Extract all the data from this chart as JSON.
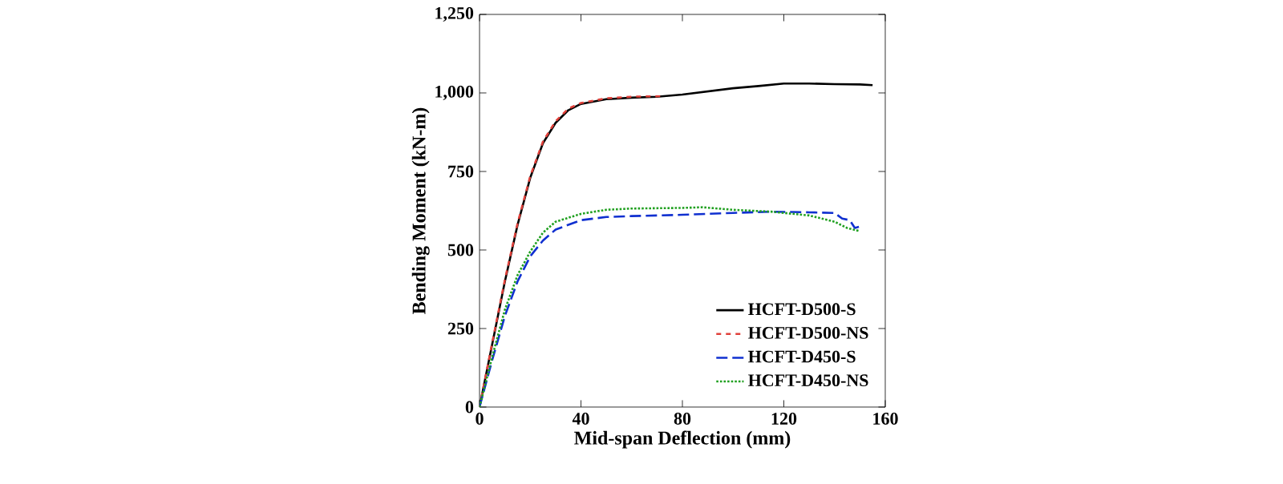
{
  "chart_data": {
    "type": "line",
    "xlabel": "Mid-span Deflection (mm)",
    "ylabel": "Bending Moment (kN-m)",
    "xlim": [
      0,
      160
    ],
    "xticks": [
      0,
      40,
      80,
      120,
      160
    ],
    "ylim": [
      0,
      1250
    ],
    "yticks": [
      0,
      {
        "value": 250,
        "label": "250"
      },
      {
        "value": 500,
        "label": "500"
      },
      {
        "value": 750,
        "label": "750"
      },
      {
        "value": 1000,
        "label": "1,000"
      },
      {
        "value": 1250,
        "label": "1,250"
      }
    ],
    "grid": false,
    "legend": "bottom right",
    "marker": "none",
    "series": [
      {
        "name": "HCFT-D500-S",
        "color": "#000000",
        "line_style": "solid",
        "x": [
          0,
          5,
          10,
          15,
          20,
          25,
          30,
          35,
          40,
          50,
          60,
          70,
          80,
          90,
          100,
          110,
          120,
          130,
          140,
          150,
          155
        ],
        "values": [
          0,
          200,
          400,
          580,
          730,
          840,
          905,
          945,
          965,
          980,
          985,
          988,
          995,
          1005,
          1015,
          1022,
          1030,
          1030,
          1028,
          1027,
          1025
        ]
      },
      {
        "name": "HCFT-D500-NS",
        "color": "#e0403a",
        "line_style": "dashed",
        "x": [
          0,
          5,
          10,
          15,
          20,
          25,
          30,
          35,
          40,
          50,
          60,
          72
        ],
        "values": [
          0,
          205,
          405,
          585,
          735,
          845,
          910,
          950,
          968,
          983,
          988,
          990
        ]
      },
      {
        "name": "HCFT-D450-S",
        "color": "#1030d0",
        "line_style": "longdash",
        "x": [
          0,
          5,
          10,
          15,
          20,
          25,
          30,
          40,
          50,
          60,
          80,
          100,
          115,
          130,
          140,
          143,
          146,
          148,
          150
        ],
        "values": [
          0,
          150,
          290,
          400,
          480,
          530,
          565,
          595,
          605,
          608,
          612,
          618,
          622,
          620,
          618,
          600,
          595,
          570,
          575
        ]
      },
      {
        "name": "HCFT-D450-NS",
        "color": "#20a020",
        "line_style": "dotted",
        "x": [
          0,
          5,
          10,
          15,
          20,
          25,
          30,
          40,
          50,
          60,
          80,
          88,
          100,
          115,
          130,
          140,
          145,
          150
        ],
        "values": [
          0,
          160,
          310,
          420,
          495,
          555,
          590,
          615,
          628,
          632,
          634,
          636,
          628,
          622,
          610,
          590,
          570,
          560
        ]
      }
    ]
  }
}
